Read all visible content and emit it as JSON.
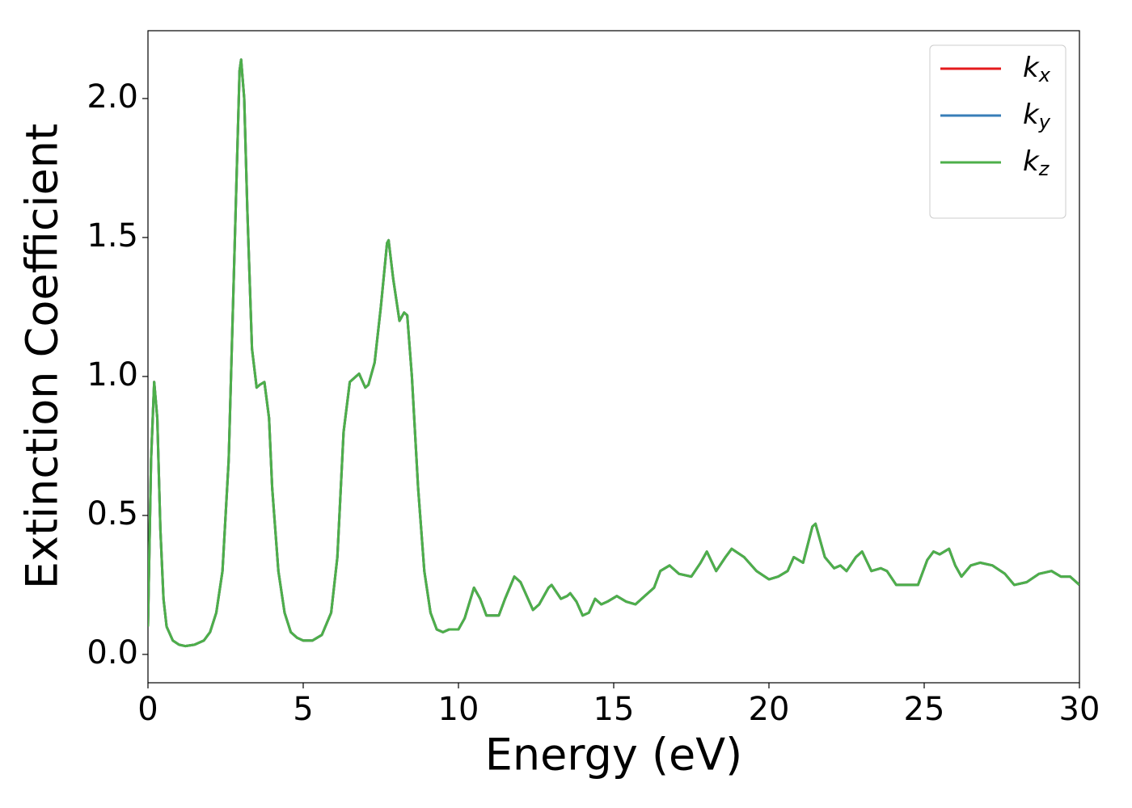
{
  "chart_data": {
    "type": "line",
    "xlabel": "Energy (eV)",
    "ylabel": "Extinction Coefficient",
    "x": [
      0.0,
      0.1,
      0.2,
      0.3,
      0.4,
      0.5,
      0.6,
      0.8,
      1.0,
      1.2,
      1.5,
      1.8,
      2.0,
      2.2,
      2.4,
      2.6,
      2.8,
      2.95,
      3.0,
      3.1,
      3.2,
      3.35,
      3.5,
      3.6,
      3.75,
      3.9,
      4.0,
      4.2,
      4.4,
      4.6,
      4.8,
      5.0,
      5.3,
      5.6,
      5.9,
      6.1,
      6.3,
      6.5,
      6.7,
      6.8,
      7.0,
      7.1,
      7.3,
      7.5,
      7.7,
      7.75,
      7.9,
      8.1,
      8.25,
      8.35,
      8.5,
      8.7,
      8.9,
      9.1,
      9.3,
      9.5,
      9.7,
      10.0,
      10.2,
      10.5,
      10.7,
      10.9,
      11.1,
      11.3,
      11.5,
      11.8,
      12.0,
      12.4,
      12.6,
      12.9,
      13.0,
      13.3,
      13.5,
      13.6,
      13.8,
      14.0,
      14.2,
      14.4,
      14.6,
      14.8,
      15.1,
      15.4,
      15.7,
      16.0,
      16.3,
      16.5,
      16.8,
      17.1,
      17.5,
      17.8,
      18.0,
      18.3,
      18.6,
      18.8,
      19.2,
      19.6,
      20.0,
      20.3,
      20.6,
      20.8,
      21.1,
      21.4,
      21.5,
      21.8,
      22.1,
      22.3,
      22.5,
      22.8,
      23.0,
      23.3,
      23.6,
      23.8,
      24.1,
      24.5,
      24.8,
      25.1,
      25.3,
      25.5,
      25.8,
      26.0,
      26.2,
      26.5,
      26.8,
      27.2,
      27.6,
      27.9,
      28.3,
      28.7,
      29.1,
      29.4,
      29.7,
      30.0
    ],
    "series": [
      {
        "name": "kx",
        "color": "#e41a1c",
        "values": [
          0.1,
          0.7,
          0.98,
          0.85,
          0.45,
          0.2,
          0.1,
          0.05,
          0.035,
          0.03,
          0.035,
          0.05,
          0.08,
          0.15,
          0.3,
          0.7,
          1.5,
          2.1,
          2.14,
          2.0,
          1.6,
          1.1,
          0.96,
          0.97,
          0.98,
          0.85,
          0.6,
          0.3,
          0.15,
          0.08,
          0.06,
          0.05,
          0.05,
          0.07,
          0.15,
          0.35,
          0.8,
          0.98,
          1.0,
          1.01,
          0.96,
          0.97,
          1.05,
          1.25,
          1.48,
          1.49,
          1.35,
          1.2,
          1.23,
          1.22,
          1.0,
          0.6,
          0.3,
          0.15,
          0.09,
          0.08,
          0.09,
          0.09,
          0.13,
          0.24,
          0.2,
          0.14,
          0.14,
          0.14,
          0.2,
          0.28,
          0.26,
          0.16,
          0.18,
          0.24,
          0.25,
          0.2,
          0.21,
          0.22,
          0.19,
          0.14,
          0.15,
          0.2,
          0.18,
          0.19,
          0.21,
          0.19,
          0.18,
          0.21,
          0.24,
          0.3,
          0.32,
          0.29,
          0.28,
          0.33,
          0.37,
          0.3,
          0.35,
          0.38,
          0.35,
          0.3,
          0.27,
          0.28,
          0.3,
          0.35,
          0.33,
          0.46,
          0.47,
          0.35,
          0.31,
          0.32,
          0.3,
          0.35,
          0.37,
          0.3,
          0.31,
          0.3,
          0.25,
          0.25,
          0.25,
          0.34,
          0.37,
          0.36,
          0.38,
          0.32,
          0.28,
          0.32,
          0.33,
          0.32,
          0.29,
          0.25,
          0.26,
          0.29,
          0.3,
          0.28,
          0.28,
          0.25
        ]
      },
      {
        "name": "ky",
        "color": "#377eb8",
        "values": [
          0.1,
          0.7,
          0.98,
          0.85,
          0.45,
          0.2,
          0.1,
          0.05,
          0.035,
          0.03,
          0.035,
          0.05,
          0.08,
          0.15,
          0.3,
          0.7,
          1.5,
          2.1,
          2.14,
          2.0,
          1.6,
          1.1,
          0.96,
          0.97,
          0.98,
          0.85,
          0.6,
          0.3,
          0.15,
          0.08,
          0.06,
          0.05,
          0.05,
          0.07,
          0.15,
          0.35,
          0.8,
          0.98,
          1.0,
          1.01,
          0.96,
          0.97,
          1.05,
          1.25,
          1.48,
          1.49,
          1.35,
          1.2,
          1.23,
          1.22,
          1.0,
          0.6,
          0.3,
          0.15,
          0.09,
          0.08,
          0.09,
          0.09,
          0.13,
          0.24,
          0.2,
          0.14,
          0.14,
          0.14,
          0.2,
          0.28,
          0.26,
          0.16,
          0.18,
          0.24,
          0.25,
          0.2,
          0.21,
          0.22,
          0.19,
          0.14,
          0.15,
          0.2,
          0.18,
          0.19,
          0.21,
          0.19,
          0.18,
          0.21,
          0.24,
          0.3,
          0.32,
          0.29,
          0.28,
          0.33,
          0.37,
          0.3,
          0.35,
          0.38,
          0.35,
          0.3,
          0.27,
          0.28,
          0.3,
          0.35,
          0.33,
          0.46,
          0.47,
          0.35,
          0.31,
          0.32,
          0.3,
          0.35,
          0.37,
          0.3,
          0.31,
          0.3,
          0.25,
          0.25,
          0.25,
          0.34,
          0.37,
          0.36,
          0.38,
          0.32,
          0.28,
          0.32,
          0.33,
          0.32,
          0.29,
          0.25,
          0.26,
          0.29,
          0.3,
          0.28,
          0.28,
          0.25
        ]
      },
      {
        "name": "kz",
        "color": "#4daf4a",
        "values": [
          0.1,
          0.7,
          0.98,
          0.85,
          0.45,
          0.2,
          0.1,
          0.05,
          0.035,
          0.03,
          0.035,
          0.05,
          0.08,
          0.15,
          0.3,
          0.7,
          1.5,
          2.1,
          2.14,
          2.0,
          1.6,
          1.1,
          0.96,
          0.97,
          0.98,
          0.85,
          0.6,
          0.3,
          0.15,
          0.08,
          0.06,
          0.05,
          0.05,
          0.07,
          0.15,
          0.35,
          0.8,
          0.98,
          1.0,
          1.01,
          0.96,
          0.97,
          1.05,
          1.25,
          1.48,
          1.49,
          1.35,
          1.2,
          1.23,
          1.22,
          1.0,
          0.6,
          0.3,
          0.15,
          0.09,
          0.08,
          0.09,
          0.09,
          0.13,
          0.24,
          0.2,
          0.14,
          0.14,
          0.14,
          0.2,
          0.28,
          0.26,
          0.16,
          0.18,
          0.24,
          0.25,
          0.2,
          0.21,
          0.22,
          0.19,
          0.14,
          0.15,
          0.2,
          0.18,
          0.19,
          0.21,
          0.19,
          0.18,
          0.21,
          0.24,
          0.3,
          0.32,
          0.29,
          0.28,
          0.33,
          0.37,
          0.3,
          0.35,
          0.38,
          0.35,
          0.3,
          0.27,
          0.28,
          0.3,
          0.35,
          0.33,
          0.46,
          0.47,
          0.35,
          0.31,
          0.32,
          0.3,
          0.35,
          0.37,
          0.3,
          0.31,
          0.3,
          0.25,
          0.25,
          0.25,
          0.34,
          0.37,
          0.36,
          0.38,
          0.32,
          0.28,
          0.32,
          0.33,
          0.32,
          0.29,
          0.25,
          0.26,
          0.29,
          0.3,
          0.28,
          0.28,
          0.25
        ]
      }
    ],
    "xlim": [
      0,
      30
    ],
    "xticks": [
      0,
      5,
      10,
      15,
      20,
      25,
      30
    ],
    "ylim": [
      -0.102,
      2.244
    ],
    "yticks": [
      {
        "value": 0,
        "label": "0.0"
      },
      0.5,
      {
        "value": 1,
        "label": "1.0"
      },
      1.5,
      {
        "value": 2,
        "label": "2.0"
      }
    ],
    "grid": false,
    "legend": "upper right"
  }
}
